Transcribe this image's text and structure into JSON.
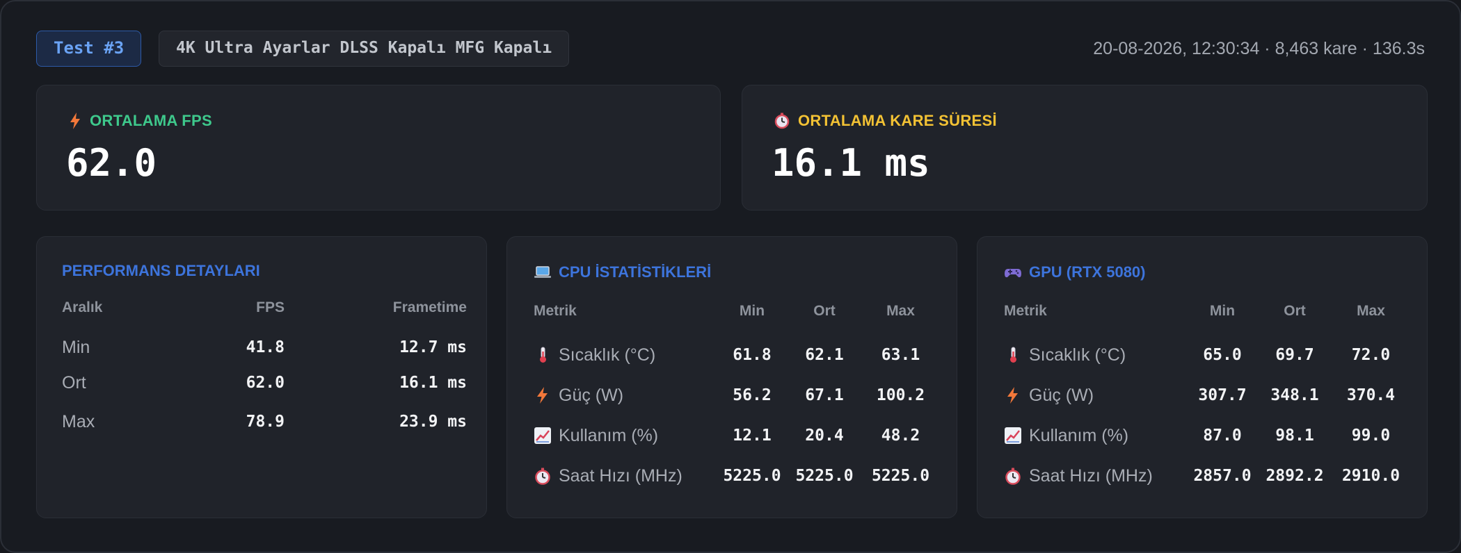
{
  "header": {
    "test_label": "Test #3",
    "config": "4K Ultra Ayarlar DLSS Kapalı MFG Kapalı",
    "meta": "20-08-2026, 12:30:34 · 8,463 kare · 136.3s"
  },
  "summary": {
    "fps": {
      "icon": "lightning-icon",
      "label": "ORTALAMA FPS",
      "value": "62.0",
      "color": "#3ec98c"
    },
    "frametime": {
      "icon": "stopwatch-icon",
      "label": "ORTALAMA KARE SÜRESİ",
      "value": "16.1 ms",
      "color": "#f3c234"
    }
  },
  "performance": {
    "title": "PERFORMANS DETAYLARI",
    "columns": [
      "Aralık",
      "FPS",
      "Frametime"
    ],
    "rows": [
      {
        "label": "Min",
        "fps": "41.8",
        "frametime": "12.7 ms"
      },
      {
        "label": "Ort",
        "fps": "62.0",
        "frametime": "16.1 ms"
      },
      {
        "label": "Max",
        "fps": "78.9",
        "frametime": "23.9 ms"
      }
    ]
  },
  "cpu": {
    "icon": "laptop-icon",
    "title": "CPU İSTATİSTİKLERİ",
    "columns": [
      "Metrik",
      "Min",
      "Ort",
      "Max"
    ],
    "rows": [
      {
        "icon": "thermometer-icon",
        "label": "Sıcaklık (°C)",
        "min": "61.8",
        "avg": "62.1",
        "max": "63.1"
      },
      {
        "icon": "lightning-icon",
        "label": "Güç (W)",
        "min": "56.2",
        "avg": "67.1",
        "max": "100.2"
      },
      {
        "icon": "chart-icon",
        "label": "Kullanım (%)",
        "min": "12.1",
        "avg": "20.4",
        "max": "48.2"
      },
      {
        "icon": "stopwatch-icon",
        "label": "Saat Hızı (MHz)",
        "min": "5225.0",
        "avg": "5225.0",
        "max": "5225.0"
      }
    ]
  },
  "gpu": {
    "icon": "gamepad-icon",
    "title": "GPU (RTX 5080)",
    "columns": [
      "Metrik",
      "Min",
      "Ort",
      "Max"
    ],
    "rows": [
      {
        "icon": "thermometer-icon",
        "label": "Sıcaklık (°C)",
        "min": "65.0",
        "avg": "69.7",
        "max": "72.0"
      },
      {
        "icon": "lightning-icon",
        "label": "Güç (W)",
        "min": "307.7",
        "avg": "348.1",
        "max": "370.4"
      },
      {
        "icon": "chart-icon",
        "label": "Kullanım (%)",
        "min": "87.0",
        "avg": "98.1",
        "max": "99.0"
      },
      {
        "icon": "stopwatch-icon",
        "label": "Saat Hızı (MHz)",
        "min": "2857.0",
        "avg": "2892.2",
        "max": "2910.0"
      }
    ]
  }
}
